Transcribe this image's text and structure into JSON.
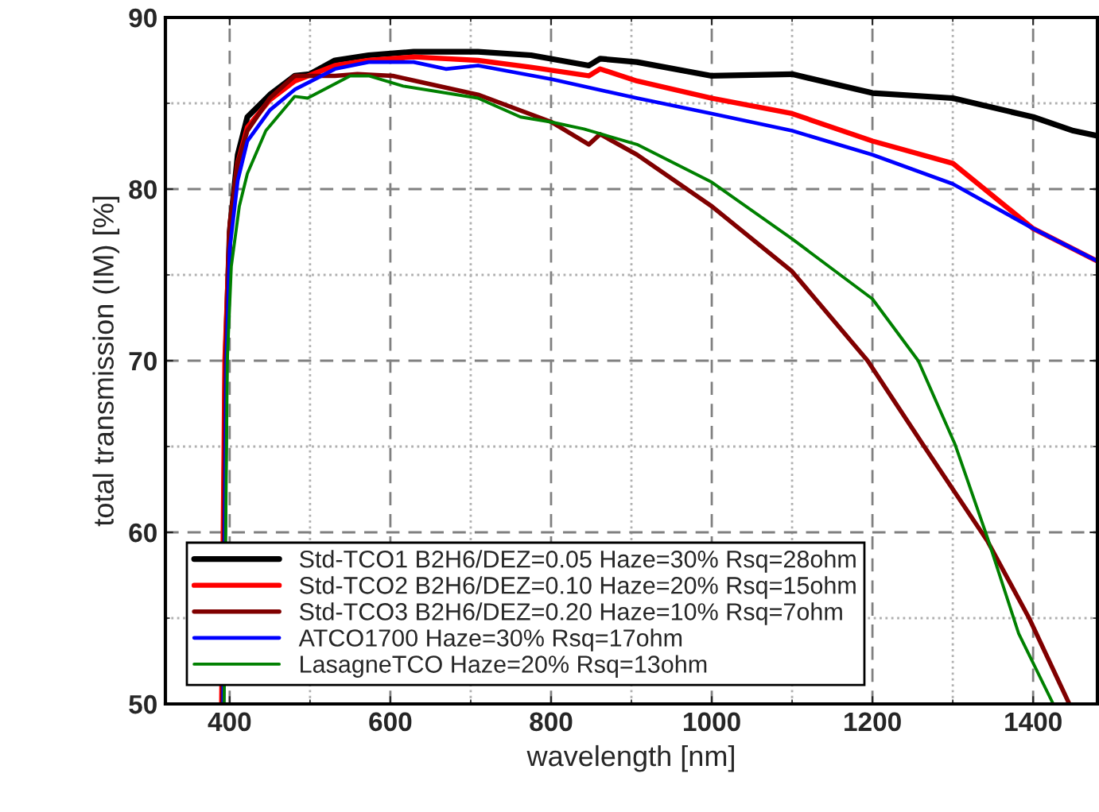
{
  "chart_data": {
    "type": "line",
    "xlabel": "wavelength [nm]",
    "ylabel": "total transmission (IM) [%]",
    "xlim": [
      320,
      1480
    ],
    "ylim": [
      50,
      90
    ],
    "xticks": [
      400,
      600,
      800,
      1000,
      1200,
      1400
    ],
    "yticks": [
      50,
      60,
      70,
      80,
      90
    ],
    "grid": true,
    "legend": "bottom left",
    "line_style": "solid",
    "marker": "none",
    "series": [
      {
        "name": "Std-TCO1 B2H6/DEZ=0.05 Haze=30% Rsq=28ohm",
        "color": "#000000",
        "x": [
          391,
          395,
          400,
          410,
          422,
          450,
          481,
          500,
          531,
          573,
          629,
          709,
          775,
          847,
          861,
          907,
          1000,
          1100,
          1200,
          1300,
          1400,
          1450,
          1480
        ],
        "values": [
          50,
          70,
          77.5,
          82,
          84.2,
          85.5,
          86.6,
          86.7,
          87.5,
          87.8,
          88.0,
          88.0,
          87.8,
          87.2,
          87.6,
          87.4,
          86.6,
          86.7,
          85.6,
          85.3,
          84.2,
          83.4,
          83.1
        ]
      },
      {
        "name": "Std-TCO2 B2H6/DEZ=0.10 Haze=20% Rsq=15ohm",
        "color": "#ff0000",
        "x": [
          390,
          394,
          400,
          410,
          422,
          450,
          481,
          531,
          573,
          629,
          709,
          775,
          847,
          861,
          907,
          1000,
          1100,
          1200,
          1300,
          1400,
          1480
        ],
        "values": [
          50,
          70,
          77.5,
          81.5,
          83.6,
          85.2,
          86.3,
          87.2,
          87.5,
          87.7,
          87.5,
          87.1,
          86.6,
          87.0,
          86.3,
          85.3,
          84.4,
          82.8,
          81.5,
          77.7,
          75.8
        ]
      },
      {
        "name": "Std-TCO3 B2H6/DEZ=0.20 Haze=10% Rsq=7ohm",
        "color": "#800000",
        "x": [
          391,
          395,
          400,
          410,
          422,
          450,
          481,
          531,
          559,
          603,
          709,
          801,
          847,
          861,
          907,
          1000,
          1100,
          1194,
          1263,
          1343,
          1395,
          1445
        ],
        "values": [
          50,
          70,
          78,
          81.5,
          83.4,
          85.3,
          86.6,
          86.6,
          86.7,
          86.6,
          85.5,
          83.9,
          82.6,
          83.2,
          82.0,
          79.0,
          75.2,
          70.0,
          65.1,
          59.5,
          55.0,
          50
        ]
      },
      {
        "name": "ATCO1700 Haze=30% Rsq=17ohm",
        "color": "#0000ff",
        "x": [
          392,
          396,
          400,
          410,
          422,
          450,
          481,
          531,
          573,
          629,
          669,
          709,
          801,
          907,
          1000,
          1100,
          1200,
          1300,
          1400,
          1480
        ],
        "values": [
          50,
          70,
          76.5,
          80.5,
          82.8,
          84.6,
          85.8,
          87.0,
          87.4,
          87.4,
          87.0,
          87.2,
          86.4,
          85.3,
          84.4,
          83.4,
          82.0,
          80.3,
          77.7,
          75.8
        ]
      },
      {
        "name": "LasagneTCO Haze=20% Rsq=13ohm",
        "color": "#008000",
        "x": [
          393,
          397,
          402,
          412,
          422,
          445,
          481,
          497,
          550,
          573,
          616,
          709,
          762,
          801,
          841,
          907,
          1000,
          1100,
          1200,
          1257,
          1303,
          1343,
          1382,
          1425
        ],
        "values": [
          50,
          70,
          75.5,
          79,
          80.9,
          83.4,
          85.4,
          85.3,
          86.6,
          86.6,
          86.0,
          85.3,
          84.2,
          83.9,
          83.5,
          82.6,
          80.4,
          77.1,
          73.6,
          70.0,
          65.1,
          59.7,
          54.1,
          50
        ]
      }
    ]
  }
}
